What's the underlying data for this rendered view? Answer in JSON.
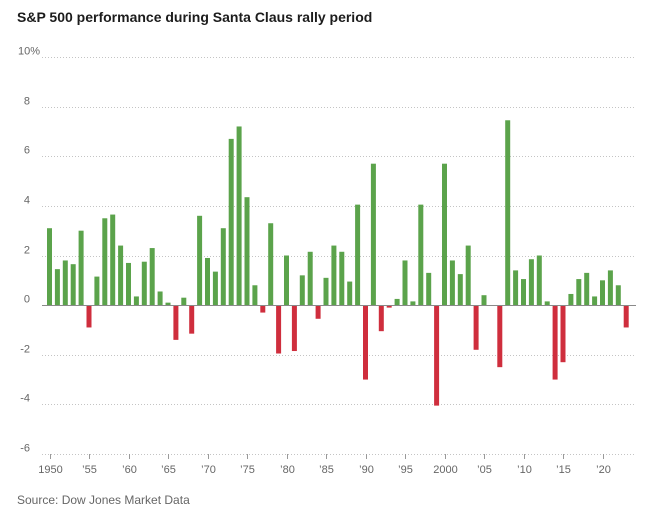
{
  "source": "Source: Dow Jones Market Data",
  "colors": {
    "positive_bar": "#5ba34b",
    "negative_bar": "#cf2e3d",
    "gridline": "#c4c4c4",
    "zero_line": "#8a8a8a",
    "axis_tick": "#9a9a9a"
  },
  "chart_data": {
    "type": "bar",
    "title": "S&P 500 performance during Santa Claus rally period",
    "xlabel": "",
    "ylabel": "",
    "ylim": [
      -6,
      10
    ],
    "y_ticks": [
      10,
      8,
      6,
      4,
      2,
      0,
      -2,
      -4,
      -6
    ],
    "y_tick_labels": [
      "10%",
      "8",
      "6",
      "4",
      "2",
      "0",
      "-2",
      "-4",
      "-6"
    ],
    "x_ticks": [
      1950,
      1955,
      1960,
      1965,
      1970,
      1975,
      1980,
      1985,
      1990,
      1995,
      2000,
      2005,
      2010,
      2015,
      2020
    ],
    "x_tick_labels": [
      "1950",
      "’55",
      "’60",
      "’65",
      "’70",
      "’75",
      "’80",
      "’85",
      "’90",
      "’95",
      "2000",
      "’05",
      "’10",
      "’15",
      "’20"
    ],
    "categories": [
      1950,
      1951,
      1952,
      1953,
      1954,
      1955,
      1956,
      1957,
      1958,
      1959,
      1960,
      1961,
      1962,
      1963,
      1964,
      1965,
      1966,
      1967,
      1968,
      1969,
      1970,
      1971,
      1972,
      1973,
      1974,
      1975,
      1976,
      1977,
      1978,
      1979,
      1980,
      1981,
      1982,
      1983,
      1984,
      1985,
      1986,
      1987,
      1988,
      1989,
      1990,
      1991,
      1992,
      1993,
      1994,
      1995,
      1996,
      1997,
      1998,
      1999,
      2000,
      2001,
      2002,
      2003,
      2004,
      2005,
      2006,
      2007,
      2008,
      2009,
      2010,
      2011,
      2012,
      2013,
      2014,
      2015,
      2016,
      2017,
      2018,
      2019,
      2020,
      2021,
      2022,
      2023
    ],
    "values": [
      3.1,
      1.45,
      1.8,
      1.65,
      3.0,
      -0.9,
      1.15,
      3.5,
      3.65,
      2.4,
      1.7,
      0.35,
      1.75,
      2.3,
      0.55,
      0.1,
      -1.4,
      0.3,
      -1.15,
      3.6,
      1.9,
      1.35,
      3.1,
      6.7,
      7.2,
      4.35,
      0.8,
      -0.3,
      3.3,
      -1.95,
      2.0,
      -1.85,
      1.2,
      2.15,
      -0.55,
      1.1,
      2.4,
      2.15,
      0.95,
      4.05,
      -3.0,
      5.7,
      -1.05,
      -0.1,
      0.25,
      1.8,
      0.15,
      4.05,
      1.3,
      -4.05,
      5.7,
      1.8,
      1.25,
      2.4,
      -1.8,
      0.4,
      0.0,
      -2.5,
      7.45,
      1.4,
      1.05,
      1.85,
      2.0,
      0.15,
      -3.0,
      -2.3,
      0.45,
      1.05,
      1.3,
      0.35,
      1.0,
      1.4,
      0.8,
      -0.9
    ]
  }
}
